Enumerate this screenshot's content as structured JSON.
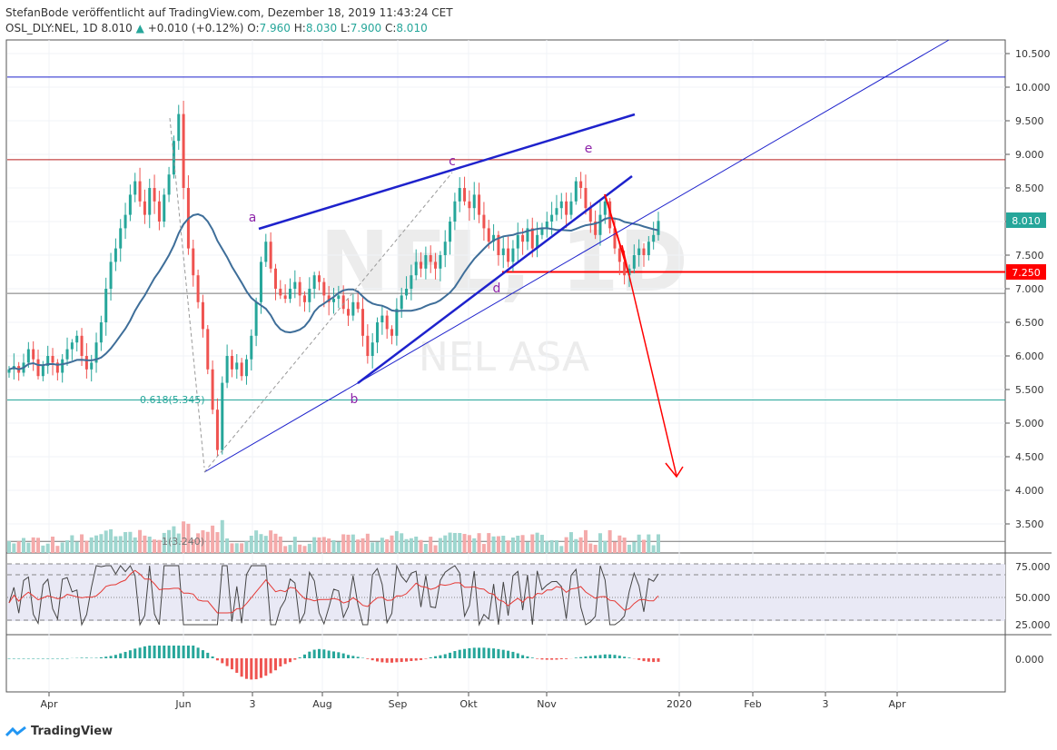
{
  "header": {
    "publish_line": "StefanBode veröffentlicht auf TradingView.com, Dezember 18, 2019 11:43:24 CET",
    "symbol": "OSL_DLY:NEL, 1D",
    "last": "8.010",
    "change": "+0.010 (+0.12%)",
    "open_label": "O:",
    "open": "7.960",
    "high_label": "H:",
    "high": "8.030",
    "low_label": "L:",
    "low": "7.900",
    "close_label": "C:",
    "close": "8.010"
  },
  "watermark": {
    "ticker": "NEL, 1D",
    "name": "NEL ASA"
  },
  "footer": {
    "brand": "TradingView"
  },
  "colors": {
    "up": "#26a69a",
    "down": "#ef5350",
    "trend": "#1e22cc",
    "target": "#ff0000",
    "ma": "#3e6e99"
  },
  "chart_data": {
    "type": "candlestick",
    "title": "",
    "price_axis": {
      "ticks": [
        "10.500",
        "10.000",
        "9.500",
        "9.000",
        "8.500",
        "8.000",
        "7.500",
        "7.000",
        "6.500",
        "6.000",
        "5.500",
        "5.000",
        "4.500",
        "4.000",
        "3.500"
      ],
      "range": [
        3.15,
        10.75
      ]
    },
    "time_axis": {
      "ticks": [
        "Apr",
        "Jun",
        "3",
        "Aug",
        "Sep",
        "Okt",
        "Nov",
        "2020",
        "Feb",
        "3",
        "Apr"
      ]
    },
    "price_labels": {
      "last": "8.010",
      "support": "7.250"
    },
    "fib": {
      "label_618": "0.618(5.345)",
      "value_618": 5.345,
      "label_1": "1(3.240)",
      "value_1": 3.24
    },
    "wave_labels": [
      "a",
      "b",
      "c",
      "d",
      "e"
    ],
    "horizontal_levels": [
      10.15,
      8.92,
      6.93,
      7.25,
      5.345,
      3.24
    ],
    "rsi": {
      "ticks": [
        "75.000",
        "50.000",
        "25.000"
      ],
      "upper": 70,
      "mid": 50,
      "lower": 30
    },
    "macd": {
      "ticks": [
        "0.000"
      ]
    },
    "closes": [
      5.8,
      5.85,
      5.75,
      5.9,
      6.1,
      5.95,
      5.7,
      5.85,
      6.0,
      5.9,
      5.75,
      5.95,
      6.1,
      6.2,
      6.3,
      6.0,
      5.8,
      5.9,
      6.2,
      6.5,
      7.0,
      7.4,
      7.6,
      7.9,
      8.1,
      8.4,
      8.6,
      8.3,
      8.1,
      8.5,
      8.3,
      8.0,
      8.4,
      8.7,
      9.2,
      9.6,
      8.5,
      7.6,
      7.2,
      6.8,
      6.4,
      5.8,
      5.2,
      4.6,
      5.6,
      6.0,
      5.8,
      5.9,
      5.7,
      5.95,
      6.3,
      6.8,
      7.4,
      7.7,
      7.3,
      7.0,
      6.9,
      6.85,
      7.0,
      7.1,
      6.9,
      6.8,
      7.0,
      7.2,
      7.1,
      6.9,
      6.8,
      6.85,
      6.9,
      6.7,
      6.6,
      6.8,
      6.7,
      6.3,
      6.0,
      6.2,
      6.5,
      6.6,
      6.4,
      6.3,
      6.7,
      6.9,
      7.0,
      7.2,
      7.4,
      7.3,
      7.5,
      7.4,
      7.3,
      7.5,
      7.7,
      8.0,
      8.3,
      8.5,
      8.3,
      8.2,
      8.4,
      8.1,
      7.9,
      7.7,
      7.8,
      7.5,
      7.6,
      7.4,
      7.6,
      7.8,
      7.7,
      7.9,
      7.6,
      7.8,
      7.9,
      8.0,
      8.1,
      8.2,
      8.3,
      8.1,
      8.3,
      8.6,
      8.5,
      8.2,
      8.0,
      7.8,
      8.1,
      8.3,
      7.9,
      7.6,
      7.4,
      7.2,
      7.3,
      7.5,
      7.6,
      7.5,
      7.7,
      7.8,
      8.01
    ]
  }
}
